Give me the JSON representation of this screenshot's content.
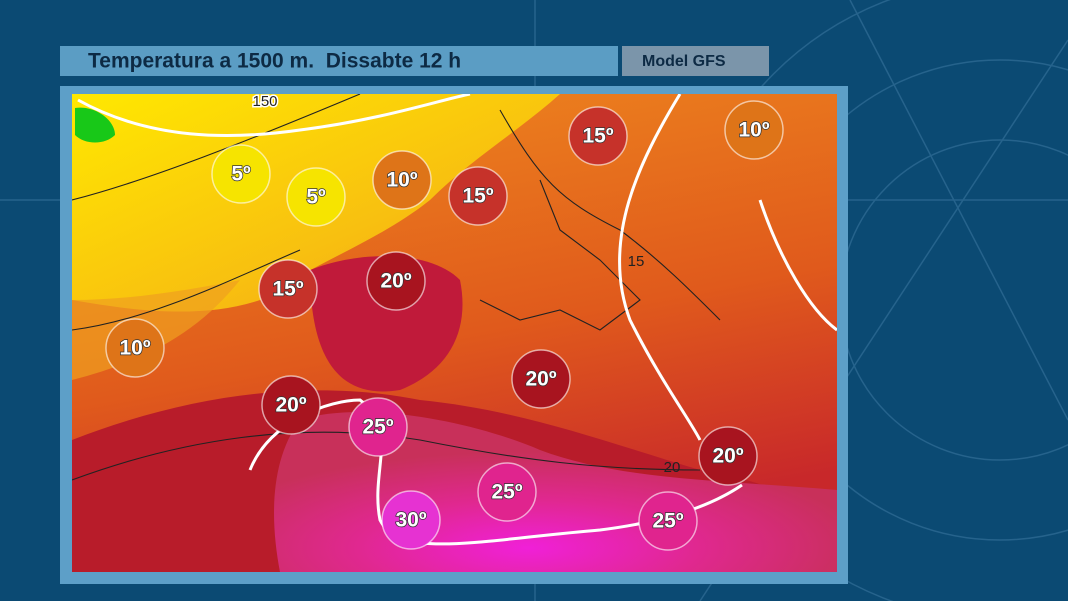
{
  "header": {
    "title": "Temperatura a 1500 m.  Dissabte 12 h",
    "model": "Model GFS"
  },
  "map": {
    "labels": [
      "5º",
      "5º",
      "10º",
      "15º",
      "15º",
      "10º",
      "15º",
      "20º",
      "10º",
      "20º",
      "20º",
      "25º",
      "20º",
      "25º",
      "30º",
      "25º"
    ],
    "contour_labels": [
      "150",
      "15",
      "20"
    ]
  }
}
